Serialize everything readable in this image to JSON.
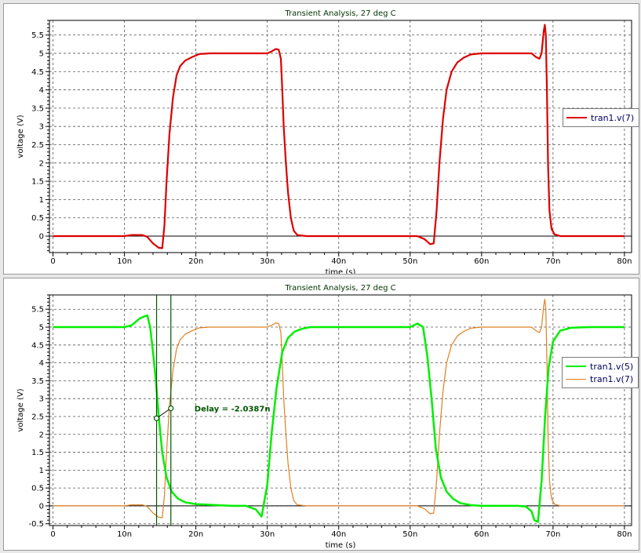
{
  "chart_data": [
    {
      "type": "line",
      "title": "Transient Analysis, 27 deg C",
      "xlabel": "time (s)",
      "ylabel": "voltage (V)",
      "xlim": [
        -0.5,
        81
      ],
      "ylim": [
        -0.45,
        5.9
      ],
      "x_ticks": [
        0,
        10,
        20,
        30,
        40,
        50,
        60,
        70,
        80
      ],
      "x_tick_labels": [
        "0",
        "10n",
        "20n",
        "30n",
        "40n",
        "50n",
        "60n",
        "70n",
        "80n"
      ],
      "y_ticks": [
        0,
        0.5,
        1,
        1.5,
        2,
        2.5,
        3,
        3.5,
        4,
        4.5,
        5,
        5.5
      ],
      "y_tick_labels": [
        "0",
        "0.5",
        "1",
        "1.5",
        "2",
        "2.5",
        "3",
        "3.5",
        "4",
        "4.5",
        "5",
        "5.5"
      ],
      "grid": true,
      "legend_position": "right",
      "series": [
        {
          "name": "tran1.v(7)",
          "color": "#dd0000",
          "x": [
            0,
            10,
            11,
            12.5,
            13.2,
            14,
            14.8,
            15.3,
            15.6,
            15.9,
            16.3,
            16.8,
            17.3,
            17.8,
            18.5,
            19.5,
            20.5,
            22,
            25,
            29,
            30,
            30.6,
            31.2,
            31.6,
            31.9,
            32.1,
            32.3,
            32.6,
            32.9,
            33.3,
            33.7,
            34.2,
            35.5,
            40,
            50,
            51,
            52,
            52.8,
            53.3,
            53.7,
            54.1,
            54.6,
            55.1,
            55.8,
            56.6,
            57.5,
            58.5,
            60,
            62,
            66,
            67,
            67.6,
            68.1,
            68.4,
            68.7,
            68.85,
            69.0,
            69.15,
            69.3,
            69.5,
            69.8,
            70.2,
            71,
            80
          ],
          "y": [
            0,
            0,
            0.03,
            0.03,
            -0.02,
            -0.2,
            -0.32,
            -0.33,
            0.3,
            1.5,
            2.8,
            3.8,
            4.4,
            4.65,
            4.8,
            4.9,
            4.98,
            5.0,
            5.0,
            5.0,
            5.0,
            5.05,
            5.12,
            5.1,
            4.85,
            4.0,
            3.0,
            2.0,
            1.2,
            0.5,
            0.15,
            0.03,
            0.0,
            0.0,
            0.0,
            0.0,
            -0.08,
            -0.22,
            -0.2,
            0.7,
            2.0,
            3.2,
            4.0,
            4.5,
            4.75,
            4.88,
            4.97,
            5.0,
            5.0,
            5.0,
            5.0,
            4.9,
            4.85,
            5.0,
            5.6,
            5.78,
            5.5,
            4.0,
            2.0,
            0.7,
            0.2,
            0.05,
            0.0,
            0.0
          ]
        }
      ]
    },
    {
      "type": "line",
      "title": "Transient Analysis, 27 deg C",
      "xlabel": "time (s)",
      "ylabel": "voltage (V)",
      "xlim": [
        -0.5,
        81
      ],
      "ylim": [
        -0.55,
        5.9
      ],
      "x_ticks": [
        0,
        10,
        20,
        30,
        40,
        50,
        60,
        70,
        80
      ],
      "x_tick_labels": [
        "0",
        "10n",
        "20n",
        "30n",
        "40n",
        "50n",
        "60n",
        "70n",
        "80n"
      ],
      "y_ticks": [
        -0.5,
        0,
        0.5,
        1,
        1.5,
        2,
        2.5,
        3,
        3.5,
        4,
        4.5,
        5,
        5.5
      ],
      "y_tick_labels": [
        "-0.5",
        "0",
        "0.5",
        "1",
        "1.5",
        "2",
        "2.5",
        "3",
        "3.5",
        "4",
        "4.5",
        "5",
        "5.5"
      ],
      "grid": true,
      "legend_position": "right",
      "series": [
        {
          "name": "tran1.v(5)",
          "color": "#00ee00",
          "x": [
            0,
            10,
            11,
            12.2,
            13.2,
            13.6,
            14.0,
            14.4,
            14.8,
            15.3,
            15.9,
            16.6,
            17.5,
            18.5,
            20,
            25,
            27,
            28.4,
            29.2,
            30.0,
            30.6,
            31.3,
            32.1,
            32.9,
            33.8,
            34.8,
            36,
            40,
            50,
            51,
            51.8,
            52.4,
            53.0,
            53.6,
            54.3,
            55.1,
            56.0,
            57.0,
            58.5,
            60,
            65,
            66.2,
            67.0,
            67.4,
            67.9,
            68.4,
            68.9,
            69.4,
            70.0,
            71.0,
            72.5,
            75,
            80
          ],
          "y": [
            5.0,
            5.0,
            5.05,
            5.25,
            5.33,
            5.0,
            4.3,
            3.5,
            2.5,
            1.5,
            0.8,
            0.4,
            0.2,
            0.1,
            0.05,
            0.0,
            0.0,
            -0.1,
            -0.3,
            0.6,
            2.0,
            3.3,
            4.3,
            4.7,
            4.87,
            4.95,
            5.0,
            5.0,
            5.0,
            5.1,
            5.0,
            4.2,
            3.0,
            1.6,
            0.8,
            0.4,
            0.2,
            0.08,
            0.02,
            0.0,
            0.0,
            -0.02,
            -0.15,
            -0.4,
            -0.45,
            0.7,
            2.5,
            3.9,
            4.6,
            4.9,
            4.98,
            5.0,
            5.0
          ]
        },
        {
          "name": "tran1.v(7)",
          "color": "#e08020",
          "x": [
            0,
            10,
            11,
            12.5,
            13.2,
            14,
            14.8,
            15.3,
            15.6,
            15.9,
            16.3,
            16.8,
            17.3,
            17.8,
            18.5,
            19.5,
            20.5,
            22,
            25,
            29,
            30,
            30.6,
            31.2,
            31.6,
            31.9,
            32.1,
            32.3,
            32.6,
            32.9,
            33.3,
            33.7,
            34.2,
            35.5,
            40,
            50,
            51,
            52,
            52.8,
            53.3,
            53.7,
            54.1,
            54.6,
            55.1,
            55.8,
            56.6,
            57.5,
            58.5,
            60,
            62,
            66,
            67,
            67.6,
            68.1,
            68.4,
            68.7,
            68.85,
            69.0,
            69.15,
            69.3,
            69.5,
            69.8,
            70.2,
            71,
            80
          ],
          "y": [
            0,
            0,
            0.03,
            0.03,
            -0.02,
            -0.2,
            -0.32,
            -0.33,
            0.3,
            1.5,
            2.8,
            3.8,
            4.4,
            4.65,
            4.8,
            4.9,
            4.98,
            5.0,
            5.0,
            5.0,
            5.0,
            5.05,
            5.12,
            5.1,
            4.85,
            4.0,
            3.0,
            2.0,
            1.2,
            0.5,
            0.15,
            0.03,
            0.0,
            0.0,
            0.0,
            0.0,
            -0.08,
            -0.22,
            -0.2,
            0.7,
            2.0,
            3.2,
            4.0,
            4.5,
            4.75,
            4.88,
            4.97,
            5.0,
            5.0,
            5.0,
            5.0,
            4.9,
            4.85,
            5.0,
            5.6,
            5.78,
            5.5,
            4.0,
            2.0,
            0.7,
            0.2,
            0.05,
            0.0,
            0.0
          ]
        }
      ],
      "annotations": [
        {
          "text": "Delay = -2.0387n",
          "cursor1": {
            "x": 14.5,
            "y": 2.45
          },
          "cursor2": {
            "x": 16.5,
            "y": 2.73
          },
          "color": "#005500"
        }
      ]
    }
  ]
}
